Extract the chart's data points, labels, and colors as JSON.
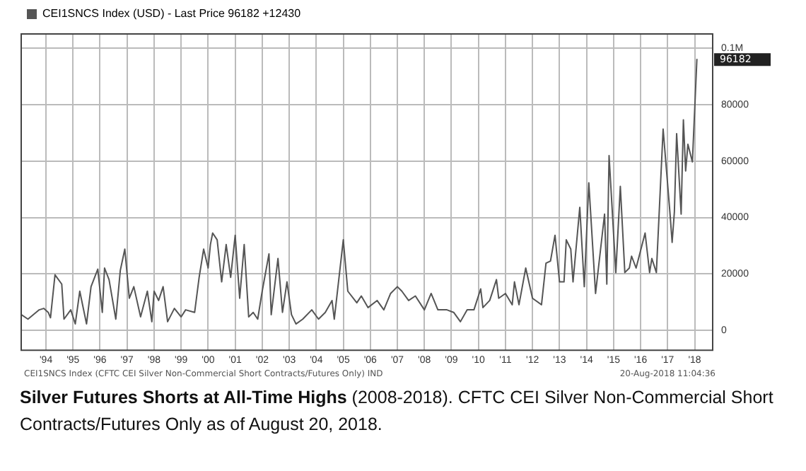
{
  "chart_data": {
    "type": "line",
    "title": "Silver Futures Shorts at All-Time Highs",
    "subtitle": "(2008-2018). CFTC CEI Silver Non-Commercial Short Contracts/Futures Only as of August 20, 2018.",
    "annotations": [
      "96182",
      "CEI1SNCS Index (CFTC CEI Silver Non-Commercial Short Contracts/Futures Only) IND",
      "20-Aug-2018 11:04:36"
    ],
    "x": [
      "1993-08",
      "1993-11",
      "1994-04",
      "1994-06",
      "1994-08",
      "1994-09",
      "1994-11",
      "1995-02",
      "1995-03",
      "1995-06",
      "1995-08",
      "1995-10",
      "1996-01",
      "1996-03",
      "1996-06",
      "1996-08",
      "1996-09",
      "1996-11",
      "1997-02",
      "1997-04",
      "1997-06",
      "1997-08",
      "1997-10",
      "1998-01",
      "1998-04",
      "1998-06",
      "1998-07",
      "1998-09",
      "1998-11",
      "1999-01",
      "1999-04",
      "1999-07",
      "1999-09",
      "2000-01",
      "2000-03",
      "2000-05",
      "2000-07",
      "2000-08",
      "2000-09",
      "2000-11",
      "2001-01",
      "2001-03",
      "2001-05",
      "2001-07",
      "2001-09",
      "2001-11",
      "2002-01",
      "2002-03",
      "2002-05",
      "2002-07",
      "2002-10",
      "2002-11",
      "2003-02",
      "2003-04",
      "2003-06",
      "2003-08",
      "2003-10",
      "2004-01",
      "2004-05",
      "2004-08",
      "2004-11",
      "2005-02",
      "2005-03",
      "2005-07",
      "2005-09",
      "2006-01",
      "2006-03",
      "2006-06",
      "2006-10",
      "2007-01",
      "2007-04",
      "2007-07",
      "2007-09",
      "2007-12",
      "2008-03",
      "2008-07",
      "2008-10",
      "2009-01",
      "2009-05",
      "2009-08",
      "2009-11",
      "2010-02",
      "2010-05",
      "2010-08",
      "2010-09",
      "2010-12",
      "2011-03",
      "2011-04",
      "2011-07",
      "2011-10",
      "2011-11",
      "2012-01",
      "2012-04",
      "2012-07",
      "2012-11",
      "2013-01",
      "2013-03",
      "2013-05",
      "2013-07",
      "2013-09",
      "2013-10",
      "2013-12",
      "2014-01",
      "2014-04",
      "2014-06",
      "2014-08",
      "2014-11",
      "2015-03",
      "2015-04",
      "2015-05",
      "2015-08",
      "2015-10",
      "2015-12",
      "2016-02",
      "2016-03",
      "2016-05",
      "2016-09",
      "2016-11",
      "2016-12",
      "2017-02",
      "2017-05",
      "2017-08",
      "2017-09",
      "2017-10",
      "2017-11",
      "2018-01",
      "2018-02",
      "2018-03",
      "2018-04",
      "2018-06",
      "2018-08"
    ],
    "series": [
      {
        "name": "CEI1SNCS Index (USD) - Last Price 96182 +12430",
        "color": "#555555",
        "values": [
          5600,
          4000,
          7300,
          7800,
          6400,
          4500,
          19700,
          16400,
          4000,
          7300,
          2300,
          13900,
          2300,
          15500,
          21700,
          6400,
          22100,
          18000,
          4000,
          21300,
          28800,
          11400,
          15500,
          4800,
          13900,
          3100,
          13900,
          10600,
          15500,
          3100,
          7800,
          4800,
          7300,
          6400,
          18800,
          28800,
          22100,
          30400,
          34500,
          32100,
          17200,
          30400,
          18800,
          33700,
          11400,
          30400,
          4800,
          6400,
          4000,
          13900,
          27100,
          5600,
          25500,
          6400,
          17200,
          5600,
          2300,
          4000,
          7300,
          4000,
          6400,
          10600,
          4000,
          32100,
          13900,
          9800,
          12200,
          8100,
          10600,
          7300,
          13100,
          15500,
          13900,
          10600,
          12200,
          7300,
          13100,
          7300,
          7300,
          6400,
          3100,
          7300,
          7300,
          14700,
          8100,
          10600,
          18000,
          11400,
          13100,
          9100,
          17200,
          9100,
          22100,
          11400,
          9100,
          23800,
          24600,
          33700,
          17200,
          17200,
          32100,
          28800,
          17200,
          43600,
          15500,
          52300,
          13100,
          41200,
          16400,
          61900,
          20500,
          51000,
          20500,
          22100,
          26300,
          22100,
          34500,
          20500,
          25500,
          20500,
          71300,
          42000,
          31200,
          42000,
          69700,
          41200,
          74600,
          56500,
          65900,
          59700,
          96182
        ]
      }
    ],
    "xlim": [
      "1993-08",
      "2019-03"
    ],
    "xticks": [
      {
        "value": "1994-07",
        "label": "'94"
      },
      {
        "value": "1995-07",
        "label": "'95"
      },
      {
        "value": "1996-07",
        "label": "'96"
      },
      {
        "value": "1997-07",
        "label": "'97"
      },
      {
        "value": "1998-07",
        "label": "'98"
      },
      {
        "value": "1999-07",
        "label": "'99"
      },
      {
        "value": "2000-07",
        "label": "'00"
      },
      {
        "value": "2001-07",
        "label": "'01"
      },
      {
        "value": "2002-07",
        "label": "'02"
      },
      {
        "value": "2003-07",
        "label": "'03"
      },
      {
        "value": "2004-07",
        "label": "'04"
      },
      {
        "value": "2005-07",
        "label": "'05"
      },
      {
        "value": "2006-07",
        "label": "'06"
      },
      {
        "value": "2007-07",
        "label": "'07"
      },
      {
        "value": "2008-07",
        "label": "'08"
      },
      {
        "value": "2009-07",
        "label": "'09"
      },
      {
        "value": "2010-07",
        "label": "'10"
      },
      {
        "value": "2011-07",
        "label": "'11"
      },
      {
        "value": "2012-07",
        "label": "'12"
      },
      {
        "value": "2013-07",
        "label": "'13"
      },
      {
        "value": "2014-07",
        "label": "'14"
      },
      {
        "value": "2015-07",
        "label": "'15"
      },
      {
        "value": "2016-07",
        "label": "'16"
      },
      {
        "value": "2017-07",
        "label": "'17"
      },
      {
        "value": "2018-07",
        "label": "'18"
      }
    ],
    "ylim": [
      -7000,
      105000
    ],
    "yticks": [
      0,
      20000,
      40000,
      60000,
      80000,
      {
        "value": 100000,
        "label": "0.1M"
      }
    ],
    "grid": true,
    "legend": "top left",
    "marker": "none",
    "line_style": "solid"
  }
}
